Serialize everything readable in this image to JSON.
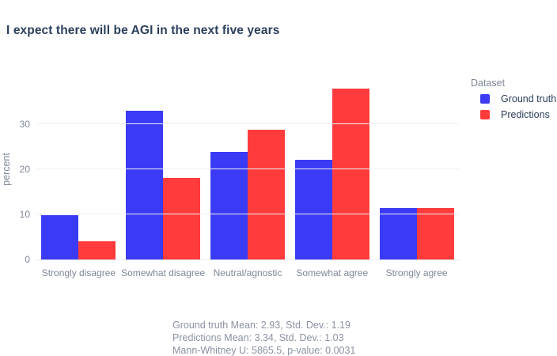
{
  "title": "I expect there will be AGI in the next five years",
  "legend": {
    "title": "Dataset",
    "items": [
      {
        "label": "Ground truth",
        "color": "#3b3bf5"
      },
      {
        "label": "Predictions",
        "color": "#ff3b3b"
      }
    ]
  },
  "chart_data": {
    "type": "bar",
    "title": "I expect there will be AGI in the next five years",
    "categories": [
      "Strongly disagree",
      "Somewhat disagree",
      "Neutral/agnostic",
      "Somewhat agree",
      "Strongly agree"
    ],
    "series": [
      {
        "name": "Ground truth",
        "color": "#3b3bf5",
        "values": [
          9.9,
          32.9,
          23.8,
          22.1,
          11.4
        ]
      },
      {
        "name": "Predictions",
        "color": "#ff3b3b",
        "values": [
          4.1,
          18.0,
          28.7,
          37.9,
          11.4
        ]
      }
    ],
    "xlabel": "",
    "ylabel": "percent",
    "yticks": [
      0,
      10,
      20,
      30
    ],
    "ylim": [
      0,
      40
    ],
    "grid": true,
    "legend_position": "right",
    "colors": {
      "grid": "#edf0f5",
      "axis_text": "#7d8798",
      "title_text": "#2b3f5c"
    }
  },
  "caption": {
    "lines": [
      "Ground truth Mean: 2.93, Std. Dev.: 1.19",
      "Predictions Mean: 3.34, Std. Dev.: 1.03",
      "Mann-Whitney U: 5865.5, p-value: 0.0031"
    ]
  }
}
